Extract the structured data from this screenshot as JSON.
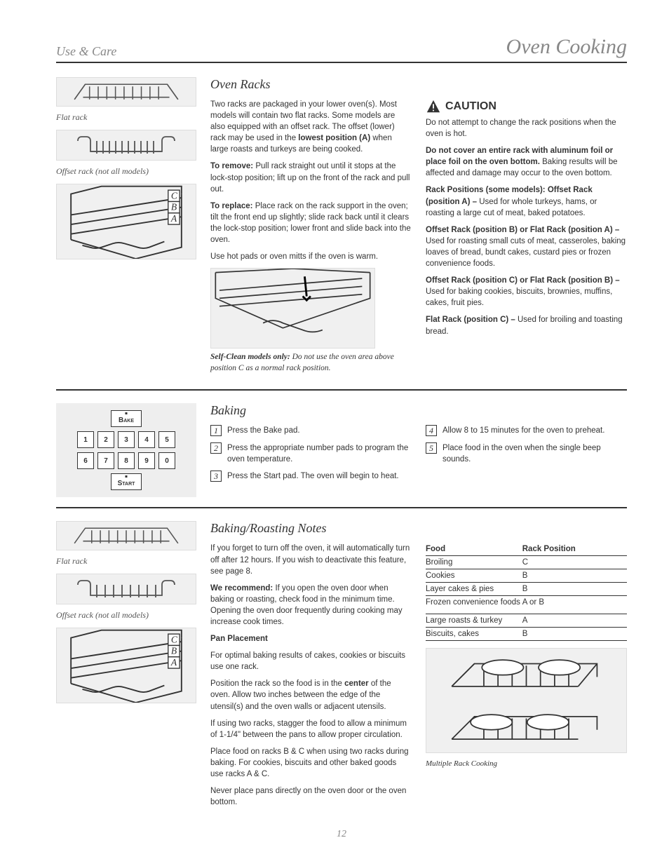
{
  "page": {
    "use_and_care": "Use & Care",
    "title": "Oven Cooking",
    "number": "12"
  },
  "racks": {
    "heading": "Oven Racks",
    "illust1_cap": "Flat rack",
    "illust2_cap": "Offset rack (not all models)",
    "para1_a": "Two racks are packaged in your lower oven(s). Most models will contain two flat racks. Some models are also equipped with an offset rack. The offset (lower) rack may be used in the ",
    "para1_b": "when large roasts and turkeys are being cooked.",
    "bold_pos": "lowest position (A)",
    "caution_label": "CAUTION",
    "para2": "Do not attempt to change the rack positions when the oven is hot.",
    "para3a": "Do not cover an entire rack with aluminum foil or place foil on the oven bottom.",
    "para3b": " Baking results will be affected and damage may occur to the oven bottom.",
    "remove_h": "To remove:",
    "remove_t": " Pull rack straight out until it stops at the lock-stop position; lift up on the front of the rack and pull out.",
    "replace_h": "To replace:",
    "replace_t": " Place rack on the rack support in the oven; tilt the front end up slightly; slide rack back until it clears the lock-stop position; lower front and slide back into the oven.",
    "use_gloves": "Use hot pads or oven mitts if the oven is warm.",
    "position_pre": "Rack Positions (some models): Offset Rack (position A) –",
    "position_txt": " Used for whole turkeys, hams, or roasting a large cut of meat, baked potatoes.",
    "offsetB": "Offset Rack (position B) or Flat Rack (position A) –",
    "offsetB_txt": " Used for roasting small cuts of meat, casseroles, baking loaves of bread, bundt cakes, custard pies or frozen convenience foods.",
    "offsetC": "Offset Rack (position C) or Flat Rack (position B) –",
    "offsetC_txt": " Used for baking cookies, biscuits, brownies, muffins, cakes, fruit pies.",
    "flatC": "Flat Rack (position C) –",
    "flatC_txt": " Used for broiling and toasting bread.",
    "self_clean_cap_pre": "Self-Clean models only:",
    "self_clean_cap": " Do not use the oven area above position C as a normal rack position."
  },
  "keypad": {
    "bake": "Bake",
    "start": "Start",
    "digits": [
      "1",
      "2",
      "3",
      "4",
      "5",
      "6",
      "7",
      "8",
      "9",
      "0"
    ]
  },
  "baking_steps": {
    "heading": "Baking",
    "s1": "Press the Bake pad.",
    "s2": "Press the appropriate number pads to program the oven temperature.",
    "s3": "Press the Start pad. The oven will begin to heat.",
    "s4": "Allow 8 to 15 minutes for the oven to preheat.",
    "s5": "Place food in the oven when the single beep sounds."
  },
  "notes": {
    "heading": "Baking/Roasting Notes",
    "para1": "If you forget to turn off the oven, it will automatically turn off after 12 hours. If you wish to deactivate this feature, see page 8.",
    "recommend": "We recommend:",
    "rec_txt": " If you open the oven door when baking or roasting, check food in the minimum time. Opening the oven door frequently during cooking may increase cook times.",
    "pan_h": "Pan Placement",
    "pan1": "For optimal baking results of cakes, cookies or biscuits use one rack.",
    "pan2_pre": "Position the rack so the food is in the ",
    "pan2_mid": "center",
    "pan2_post": " of the oven. Allow two inches between the edge of the utensil(s) and the oven walls or adjacent utensils.",
    "pan3": "If using two racks, stagger the food to allow a minimum of 1-1/4\" between the pans to allow proper circulation.",
    "pan4": "Place food on racks B & C when using two racks during baking. For cookies, biscuits and other baked goods use racks A & C.",
    "pan5": "Never place pans directly on the oven door or the oven bottom.",
    "table": {
      "col1": "Food",
      "col2": "Rack Position",
      "rows": [
        {
          "f": "Broiling",
          "r": "C",
          "rule": true
        },
        {
          "f": "Cookies",
          "r": "B",
          "rule": true
        },
        {
          "f": "Layer cakes & pies",
          "r": "B",
          "rule": true
        },
        {
          "f": "Frozen convenience foods",
          "r": "A or B",
          "rule": false
        },
        {
          "f": "",
          "r": "",
          "rule": true
        },
        {
          "f": "Large roasts & turkey",
          "r": "A",
          "rule": true
        },
        {
          "f": "Biscuits, cakes",
          "r": "B",
          "rule": true
        }
      ]
    },
    "pans_caption": "Multiple Rack Cooking"
  },
  "colors": {
    "pale": "#888888",
    "text": "#333333",
    "illust_bg": "#f0f0f0"
  }
}
